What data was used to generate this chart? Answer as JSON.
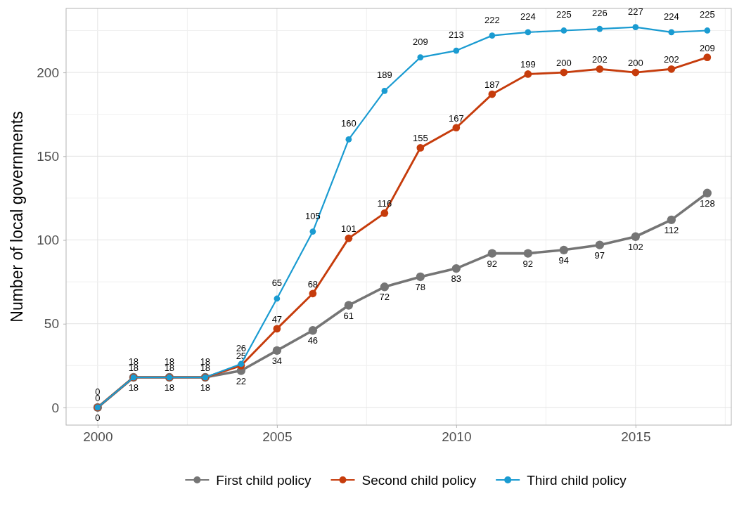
{
  "chart_data": {
    "type": "line",
    "ylabel": "Number of local governments",
    "x": [
      2000,
      2001,
      2002,
      2003,
      2004,
      2005,
      2006,
      2007,
      2008,
      2009,
      2010,
      2011,
      2012,
      2013,
      2014,
      2015,
      2016,
      2017
    ],
    "series": [
      {
        "name": "First child policy",
        "color": "#757575",
        "values": [
          0,
          18,
          18,
          18,
          22,
          34,
          46,
          61,
          72,
          78,
          83,
          92,
          92,
          94,
          97,
          102,
          112,
          128
        ]
      },
      {
        "name": "Second child policy",
        "color": "#c63c0c",
        "values": [
          0,
          18,
          18,
          18,
          25,
          47,
          68,
          101,
          116,
          155,
          167,
          187,
          199,
          200,
          202,
          200,
          202,
          209
        ]
      },
      {
        "name": "Third child policy",
        "color": "#1a9bd1",
        "values": [
          0,
          18,
          18,
          18,
          26,
          65,
          105,
          160,
          189,
          209,
          213,
          222,
          224,
          225,
          226,
          227,
          224,
          225
        ]
      }
    ],
    "xlim": [
      1999.12,
      2017.67
    ],
    "xticks": [
      2000,
      2005,
      2010,
      2015
    ],
    "ylim": [
      -10.5,
      238.2
    ],
    "yticks": [
      0,
      50,
      100,
      150,
      200
    ],
    "grid": true,
    "legend": "bottom",
    "marker": "circle",
    "line_style": "solid",
    "data_labels": true
  }
}
